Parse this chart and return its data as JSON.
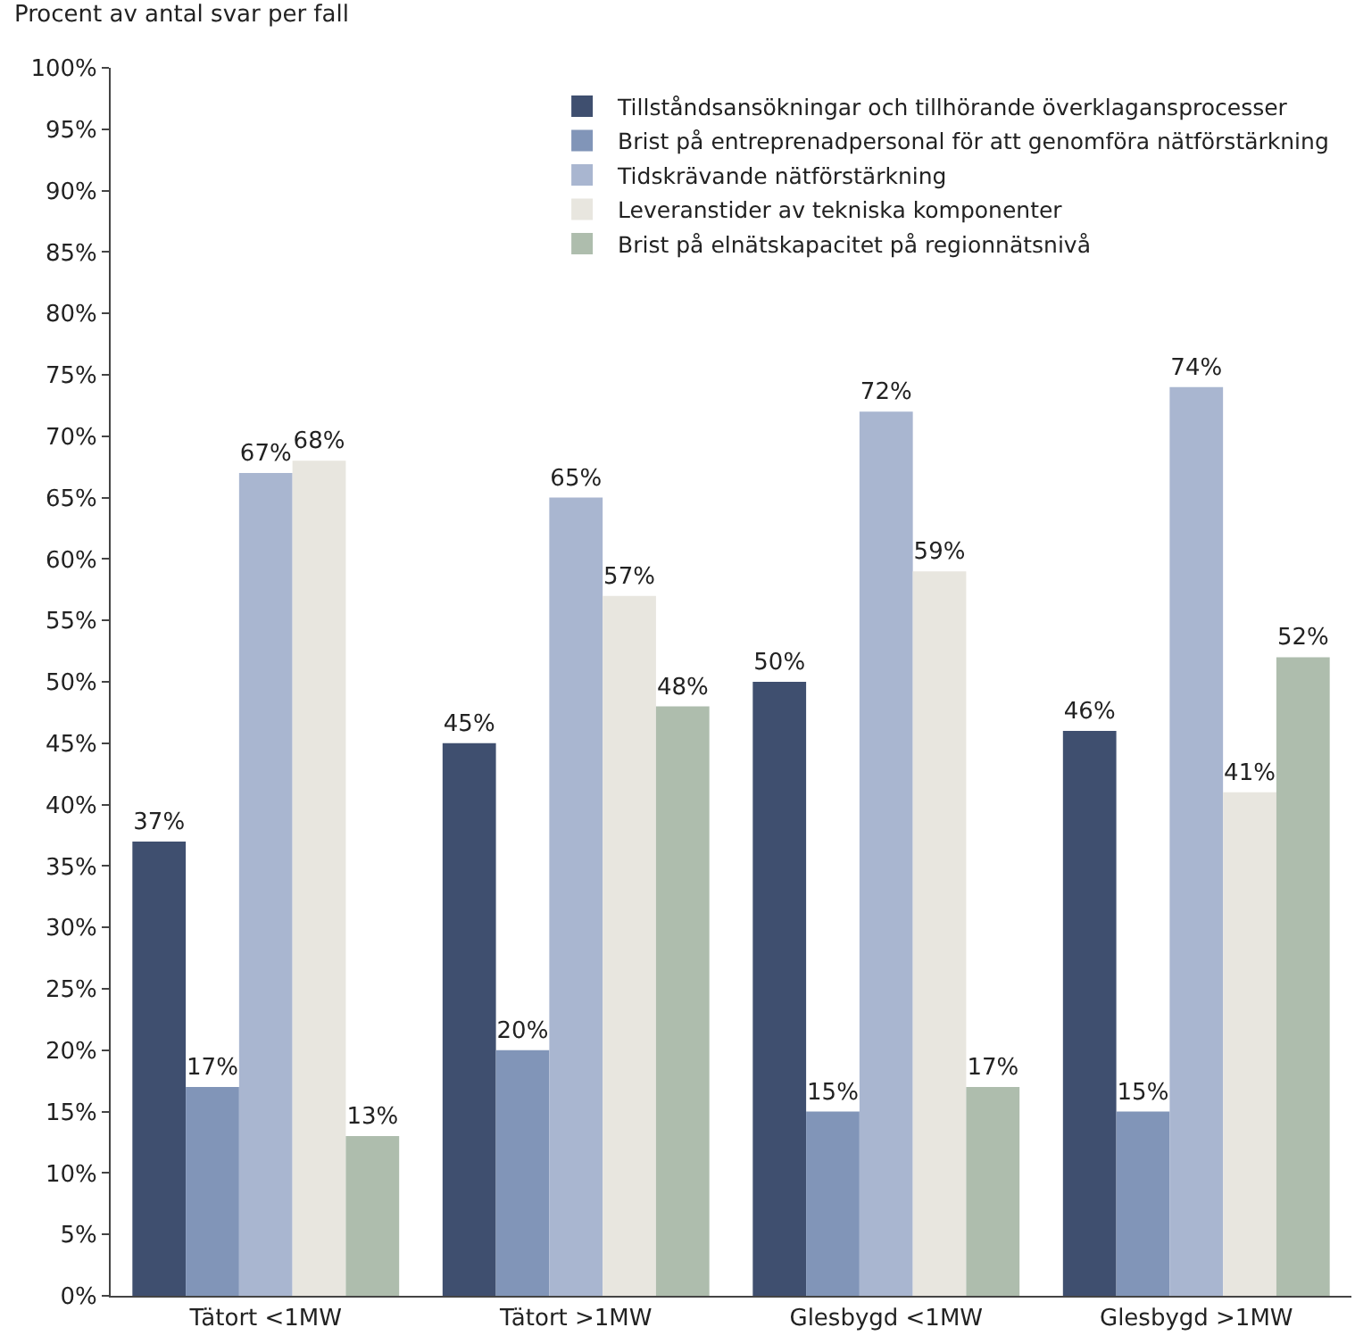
{
  "chart_data": {
    "type": "bar",
    "ylabel": "Procent av antal svar per fall",
    "categories": [
      "Tätort <1MW",
      "Tätort >1MW",
      "Glesbygd <1MW",
      "Glesbygd >1MW"
    ],
    "series": [
      {
        "name": "Tillståndsansökningar och tillhörande överklagansprocesser",
        "color": "#3f4f6f",
        "values": [
          37,
          45,
          50,
          46
        ],
        "value_labels": [
          "37%",
          "45%",
          "50%",
          "46%"
        ]
      },
      {
        "name": "Brist på entreprenadpersonal för att genomföra nätförstärkning",
        "color": "#8195b8",
        "values": [
          17,
          20,
          15,
          15
        ],
        "value_labels": [
          "17%",
          "20%",
          "15%",
          "15%"
        ]
      },
      {
        "name": "Tidskrävande nätförstärkning",
        "color": "#a9b6d0",
        "values": [
          67,
          65,
          72,
          74
        ],
        "value_labels": [
          "67%",
          "65%",
          "72%",
          "74%"
        ]
      },
      {
        "name": "Leveranstider av tekniska komponenter",
        "color": "#e8e6df",
        "values": [
          68,
          57,
          59,
          41
        ],
        "value_labels": [
          "68%",
          "57%",
          "59%",
          "41%"
        ]
      },
      {
        "name": "Brist på elnätskapacitet på regionnätsnivå",
        "color": "#aebdad",
        "values": [
          13,
          48,
          17,
          52
        ],
        "value_labels": [
          "13%",
          "48%",
          "17%",
          "52%"
        ]
      }
    ],
    "ylim": [
      0,
      100
    ],
    "yticks": [
      {
        "value": 0,
        "label": "0%"
      },
      {
        "value": 5,
        "label": "5%"
      },
      {
        "value": 10,
        "label": "10%"
      },
      {
        "value": 15,
        "label": "15%"
      },
      {
        "value": 20,
        "label": "20%"
      },
      {
        "value": 25,
        "label": "25%"
      },
      {
        "value": 30,
        "label": "30%"
      },
      {
        "value": 35,
        "label": "35%"
      },
      {
        "value": 40,
        "label": "40%"
      },
      {
        "value": 45,
        "label": "45%"
      },
      {
        "value": 50,
        "label": "50%"
      },
      {
        "value": 55,
        "label": "55%"
      },
      {
        "value": 60,
        "label": "60%"
      },
      {
        "value": 65,
        "label": "65%"
      },
      {
        "value": 70,
        "label": "70%"
      },
      {
        "value": 75,
        "label": "75%"
      },
      {
        "value": 80,
        "label": "80%"
      },
      {
        "value": 85,
        "label": "85%"
      },
      {
        "value": 90,
        "label": "90%"
      },
      {
        "value": 95,
        "label": "95%"
      },
      {
        "value": 100,
        "label": "100%"
      }
    ],
    "legend": "top right"
  }
}
